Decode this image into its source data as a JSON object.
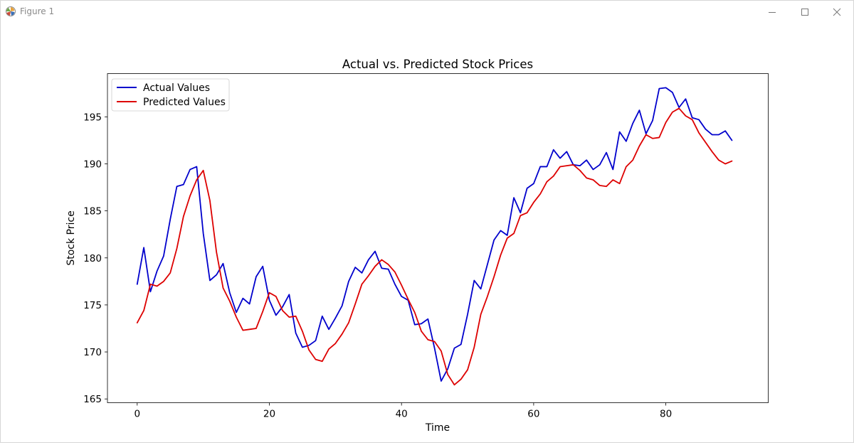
{
  "window": {
    "title": "Figure 1",
    "icons": {
      "app": "matplotlib-icon",
      "minimize": "minimize-icon",
      "maximize": "maximize-icon",
      "close": "close-icon"
    }
  },
  "chart_data": {
    "type": "line",
    "title": "Actual vs. Predicted Stock Prices",
    "xlabel": "Time",
    "ylabel": "Stock Price",
    "xlim": [
      -4.5,
      95.5
    ],
    "ylim": [
      164.6,
      199.6
    ],
    "xticks": [
      0,
      20,
      40,
      60,
      80
    ],
    "yticks": [
      165,
      170,
      175,
      180,
      185,
      190,
      195
    ],
    "grid": false,
    "legend": "top-left",
    "x": [
      0,
      1,
      2,
      3,
      4,
      5,
      6,
      7,
      8,
      9,
      10,
      11,
      12,
      13,
      14,
      15,
      16,
      17,
      18,
      19,
      20,
      21,
      22,
      23,
      24,
      25,
      26,
      27,
      28,
      29,
      30,
      31,
      32,
      33,
      34,
      35,
      36,
      37,
      38,
      39,
      40,
      41,
      42,
      43,
      44,
      45,
      46,
      47,
      48,
      49,
      50,
      51,
      52,
      53,
      54,
      55,
      56,
      57,
      58,
      59,
      60,
      61,
      62,
      63,
      64,
      65,
      66,
      67,
      68,
      69,
      70,
      71,
      72,
      73,
      74,
      75,
      76,
      77,
      78,
      79,
      80,
      81,
      82,
      83,
      84,
      85,
      86,
      87,
      88,
      89,
      90
    ],
    "series": [
      {
        "name": "Actual Values",
        "color": "#0000cc",
        "values": [
          177.2,
          181.1,
          176.4,
          178.6,
          180.2,
          184.1,
          187.6,
          187.8,
          189.4,
          189.7,
          182.6,
          177.6,
          178.2,
          179.4,
          176.3,
          174.2,
          175.7,
          175.1,
          178.0,
          179.1,
          175.5,
          173.9,
          174.8,
          176.1,
          172.0,
          170.5,
          170.7,
          171.2,
          173.8,
          172.4,
          173.6,
          174.9,
          177.5,
          179.0,
          178.4,
          179.8,
          180.7,
          178.9,
          178.8,
          177.2,
          175.9,
          175.5,
          172.9,
          173.0,
          173.5,
          170.4,
          166.9,
          168.2,
          170.4,
          170.8,
          174.0,
          177.6,
          176.7,
          179.3,
          181.9,
          182.9,
          182.4,
          186.4,
          184.8,
          187.4,
          187.9,
          189.7,
          189.7,
          191.5,
          190.6,
          191.3,
          189.9,
          189.8,
          190.4,
          189.4,
          189.9,
          191.2,
          189.4,
          193.4,
          192.4,
          194.3,
          195.7,
          193.2,
          194.6,
          198.0,
          198.1,
          197.6,
          196.0,
          196.9,
          194.9,
          194.7,
          193.7,
          193.1,
          193.1,
          193.5,
          192.5
        ]
      },
      {
        "name": "Predicted Values",
        "color": "#dd0000",
        "values": [
          173.1,
          174.4,
          177.2,
          177.0,
          177.5,
          178.4,
          181.0,
          184.4,
          186.6,
          188.3,
          189.3,
          186.1,
          180.6,
          176.8,
          175.4,
          173.7,
          172.3,
          172.4,
          172.5,
          174.3,
          176.3,
          175.9,
          174.4,
          173.7,
          173.8,
          172.2,
          170.2,
          169.2,
          169.0,
          170.3,
          170.9,
          171.9,
          173.1,
          175.1,
          177.2,
          178.1,
          179.1,
          179.8,
          179.3,
          178.5,
          177.1,
          175.6,
          174.2,
          172.2,
          171.3,
          171.1,
          170.1,
          167.6,
          166.5,
          167.1,
          168.1,
          170.5,
          174.0,
          175.9,
          178.0,
          180.3,
          182.1,
          182.6,
          184.5,
          184.8,
          185.9,
          186.8,
          188.1,
          188.7,
          189.7,
          189.8,
          189.9,
          189.3,
          188.5,
          188.3,
          187.7,
          187.6,
          188.3,
          187.9,
          189.7,
          190.4,
          191.9,
          193.1,
          192.7,
          192.8,
          194.4,
          195.5,
          195.9,
          195.1,
          194.7,
          193.3,
          192.3,
          191.3,
          190.4,
          190.0,
          190.3
        ]
      }
    ]
  }
}
